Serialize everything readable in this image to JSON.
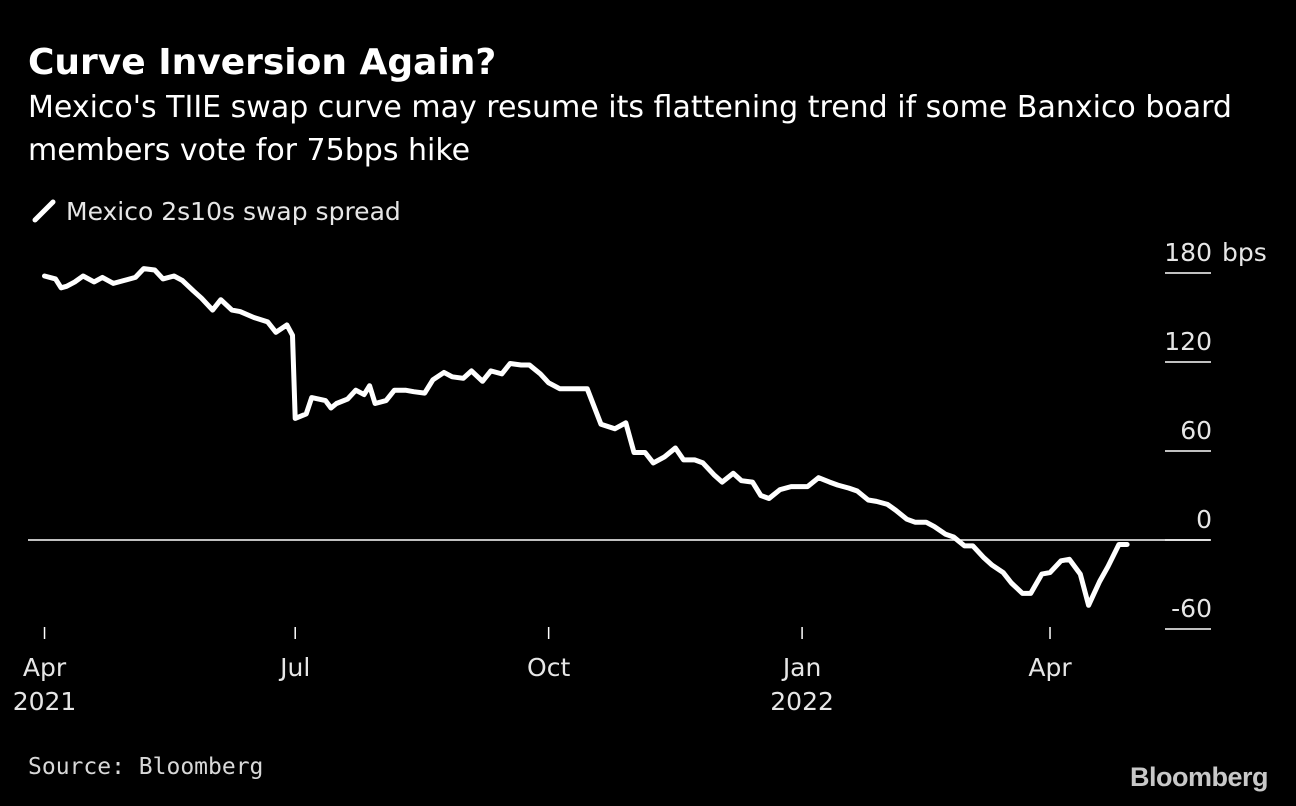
{
  "chart_data": {
    "type": "line",
    "title": "Curve Inversion Again?",
    "subtitle": "Mexico's TIIE swap curve may resume its flattening trend if some Banxico board members vote for 75bps hike",
    "series": [
      {
        "name": "Mexico 2s10s swap spread",
        "color": "#ffffff",
        "points": [
          [
            "2021-04-01",
            178
          ],
          [
            "2021-04-05",
            176
          ],
          [
            "2021-04-07",
            170
          ],
          [
            "2021-04-09",
            171
          ],
          [
            "2021-04-12",
            174
          ],
          [
            "2021-04-15",
            178
          ],
          [
            "2021-04-19",
            174
          ],
          [
            "2021-04-22",
            177
          ],
          [
            "2021-04-26",
            173
          ],
          [
            "2021-04-30",
            175
          ],
          [
            "2021-05-04",
            177
          ],
          [
            "2021-05-07",
            183
          ],
          [
            "2021-05-11",
            182
          ],
          [
            "2021-05-14",
            176
          ],
          [
            "2021-05-18",
            178
          ],
          [
            "2021-05-21",
            175
          ],
          [
            "2021-05-25",
            168
          ],
          [
            "2021-05-28",
            163
          ],
          [
            "2021-06-01",
            155
          ],
          [
            "2021-06-04",
            162
          ],
          [
            "2021-06-08",
            155
          ],
          [
            "2021-06-11",
            154
          ],
          [
            "2021-06-16",
            150
          ],
          [
            "2021-06-21",
            147
          ],
          [
            "2021-06-24",
            140
          ],
          [
            "2021-06-28",
            145
          ],
          [
            "2021-06-30",
            138
          ],
          [
            "2021-07-01",
            82
          ],
          [
            "2021-07-05",
            85
          ],
          [
            "2021-07-07",
            96
          ],
          [
            "2021-07-12",
            94
          ],
          [
            "2021-07-14",
            89
          ],
          [
            "2021-07-16",
            92
          ],
          [
            "2021-07-20",
            95
          ],
          [
            "2021-07-23",
            101
          ],
          [
            "2021-07-26",
            98
          ],
          [
            "2021-07-28",
            104
          ],
          [
            "2021-07-30",
            92
          ],
          [
            "2021-08-03",
            94
          ],
          [
            "2021-08-06",
            101
          ],
          [
            "2021-08-10",
            101
          ],
          [
            "2021-08-13",
            100
          ],
          [
            "2021-08-17",
            99
          ],
          [
            "2021-08-20",
            108
          ],
          [
            "2021-08-24",
            113
          ],
          [
            "2021-08-27",
            110
          ],
          [
            "2021-08-31",
            109
          ],
          [
            "2021-09-03",
            114
          ],
          [
            "2021-09-07",
            107
          ],
          [
            "2021-09-10",
            114
          ],
          [
            "2021-09-14",
            112
          ],
          [
            "2021-09-17",
            119
          ],
          [
            "2021-09-21",
            118
          ],
          [
            "2021-09-24",
            118
          ],
          [
            "2021-09-28",
            112
          ],
          [
            "2021-10-01",
            106
          ],
          [
            "2021-10-05",
            102
          ],
          [
            "2021-10-08",
            102
          ],
          [
            "2021-10-12",
            102
          ],
          [
            "2021-10-15",
            102
          ],
          [
            "2021-10-20",
            78
          ],
          [
            "2021-10-25",
            75
          ],
          [
            "2021-10-29",
            79
          ],
          [
            "2021-11-01",
            59
          ],
          [
            "2021-11-05",
            59
          ],
          [
            "2021-11-08",
            52
          ],
          [
            "2021-11-12",
            56
          ],
          [
            "2021-11-16",
            62
          ],
          [
            "2021-11-19",
            54
          ],
          [
            "2021-11-23",
            54
          ],
          [
            "2021-11-26",
            52
          ],
          [
            "2021-11-30",
            44
          ],
          [
            "2021-12-03",
            39
          ],
          [
            "2021-12-07",
            45
          ],
          [
            "2021-12-10",
            40
          ],
          [
            "2021-12-14",
            39
          ],
          [
            "2021-12-17",
            30
          ],
          [
            "2021-12-20",
            28
          ],
          [
            "2021-12-24",
            34
          ],
          [
            "2021-12-28",
            36
          ],
          [
            "2022-01-03",
            36
          ],
          [
            "2022-01-07",
            42
          ],
          [
            "2022-01-11",
            39
          ],
          [
            "2022-01-14",
            37
          ],
          [
            "2022-01-18",
            35
          ],
          [
            "2022-01-21",
            33
          ],
          [
            "2022-01-25",
            27
          ],
          [
            "2022-01-28",
            26
          ],
          [
            "2022-02-01",
            24
          ],
          [
            "2022-02-04",
            20
          ],
          [
            "2022-02-08",
            14
          ],
          [
            "2022-02-11",
            12
          ],
          [
            "2022-02-15",
            12
          ],
          [
            "2022-02-18",
            9
          ],
          [
            "2022-02-22",
            4
          ],
          [
            "2022-02-25",
            2
          ],
          [
            "2022-03-01",
            -4
          ],
          [
            "2022-03-04",
            -4
          ],
          [
            "2022-03-08",
            -12
          ],
          [
            "2022-03-11",
            -17
          ],
          [
            "2022-03-15",
            -22
          ],
          [
            "2022-03-18",
            -29
          ],
          [
            "2022-03-22",
            -36
          ],
          [
            "2022-03-25",
            -36
          ],
          [
            "2022-03-29",
            -23
          ],
          [
            "2022-04-01",
            -22
          ],
          [
            "2022-04-05",
            -14
          ],
          [
            "2022-04-08",
            -13
          ],
          [
            "2022-04-12",
            -23
          ],
          [
            "2022-04-15",
            -44
          ],
          [
            "2022-04-19",
            -28
          ],
          [
            "2022-04-22",
            -18
          ],
          [
            "2022-04-26",
            -3
          ],
          [
            "2022-04-29",
            -3
          ]
        ]
      }
    ],
    "xlabel": "",
    "ylabel": "",
    "yunit": "bps",
    "ylim": [
      -60,
      180
    ],
    "yticks": [
      180,
      120,
      60,
      0,
      -60
    ],
    "y_tick_labels": [
      "180",
      "120",
      "60",
      "0",
      "-60"
    ],
    "xlim": [
      "2021-03-26",
      "2022-05-20"
    ],
    "xticks": [
      {
        "date": "2021-04-01",
        "label": "Apr",
        "year": "2021"
      },
      {
        "date": "2021-07-01",
        "label": "Jul",
        "year": ""
      },
      {
        "date": "2021-10-01",
        "label": "Oct",
        "year": ""
      },
      {
        "date": "2022-01-01",
        "label": "Jan",
        "year": "2022"
      },
      {
        "date": "2022-04-01",
        "label": "Apr",
        "year": ""
      }
    ],
    "zero_line": true,
    "grid": false,
    "legend_position": "top-left"
  },
  "source": "Source: Bloomberg",
  "logo": "Bloomberg"
}
